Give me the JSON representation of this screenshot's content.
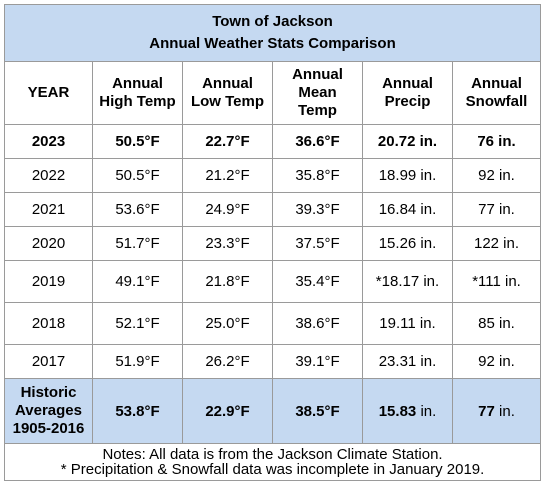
{
  "title_line1": "Town of Jackson",
  "title_line2": "Annual Weather Stats Comparison",
  "headers": [
    [
      "YEAR"
    ],
    [
      "Annual",
      "High Temp"
    ],
    [
      "Annual",
      "Low Temp"
    ],
    [
      "Annual",
      "Mean",
      "Temp"
    ],
    [
      "Annual",
      "Precip"
    ],
    [
      "Annual",
      "Snowfall"
    ]
  ],
  "rows": [
    {
      "year": "2023",
      "high": "50.5°F",
      "low": "22.7°F",
      "mean": "36.6°F",
      "precip": "20.72 in.",
      "snow": "76 in."
    },
    {
      "year": "2022",
      "high": "50.5°F",
      "low": "21.2°F",
      "mean": "35.8°F",
      "precip": "18.99 in.",
      "snow": "92 in."
    },
    {
      "year": "2021",
      "high": "53.6°F",
      "low": "24.9°F",
      "mean": "39.3°F",
      "precip": "16.84 in.",
      "snow": "77 in."
    },
    {
      "year": "2020",
      "high": "51.7°F",
      "low": "23.3°F",
      "mean": "37.5°F",
      "precip": "15.26 in.",
      "snow": "122 in."
    },
    {
      "year": "2019",
      "high": "49.1°F",
      "low": "21.8°F",
      "mean": "35.4°F",
      "precip": "*18.17 in.",
      "snow": "*111 in."
    },
    {
      "year": "2018",
      "high": "52.1°F",
      "low": "25.0°F",
      "mean": "38.6°F",
      "precip": "19.11 in.",
      "snow": "85 in."
    },
    {
      "year": "2017",
      "high": "51.9°F",
      "low": "26.2°F",
      "mean": "39.1°F",
      "precip": "23.31 in.",
      "snow": "92 in."
    }
  ],
  "averages": {
    "label_lines": [
      "Historic",
      "Averages",
      "1905-2016"
    ],
    "high": "53.8°F",
    "low": "22.9°F",
    "mean": "38.5°F",
    "precip_value": "15.83",
    "precip_unit": "in.",
    "snow_value": "77",
    "snow_unit": "in."
  },
  "notes": [
    "Notes: All data is from the Jackson Climate Station.",
    "* Precipitation & Snowfall data was incomplete in January 2019."
  ],
  "colors": {
    "header_fill": "#c5d9f1",
    "border": "#9a9a9a"
  },
  "chart_data": {
    "type": "table",
    "title": "Town of Jackson Annual Weather Stats Comparison",
    "columns": [
      "YEAR",
      "Annual High Temp",
      "Annual Low Temp",
      "Annual Mean Temp",
      "Annual Precip",
      "Annual Snowfall"
    ],
    "rows": [
      [
        "2023",
        "50.5°F",
        "22.7°F",
        "36.6°F",
        "20.72 in.",
        "76 in."
      ],
      [
        "2022",
        "50.5°F",
        "21.2°F",
        "35.8°F",
        "18.99 in.",
        "92 in."
      ],
      [
        "2021",
        "53.6°F",
        "24.9°F",
        "39.3°F",
        "16.84 in.",
        "77 in."
      ],
      [
        "2020",
        "51.7°F",
        "23.3°F",
        "37.5°F",
        "15.26 in.",
        "122 in."
      ],
      [
        "2019",
        "49.1°F",
        "21.8°F",
        "35.4°F",
        "*18.17 in.",
        "*111 in."
      ],
      [
        "2018",
        "52.1°F",
        "25.0°F",
        "38.6°F",
        "19.11 in.",
        "85 in."
      ],
      [
        "2017",
        "51.9°F",
        "26.2°F",
        "39.1°F",
        "23.31 in.",
        "92 in."
      ],
      [
        "Historic Averages 1905-2016",
        "53.8°F",
        "22.9°F",
        "38.5°F",
        "15.83 in.",
        "77 in."
      ]
    ]
  }
}
